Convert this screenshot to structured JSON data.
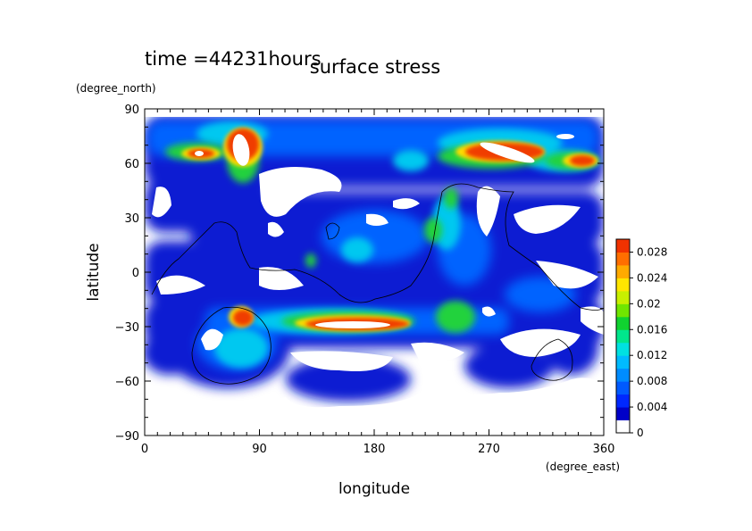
{
  "chart_data": {
    "type": "heatmap",
    "time_label": "time =44231hours",
    "title": "surface stress",
    "xlabel": "longitude",
    "ylabel": "latitude",
    "x_units": "(degree_east)",
    "y_units": "(degree_north)",
    "xlim": [
      0,
      360
    ],
    "ylim": [
      -90,
      90
    ],
    "x_ticks": [
      "0",
      "90",
      "180",
      "270",
      "360"
    ],
    "x_tick_values": [
      0,
      90,
      180,
      270,
      360
    ],
    "y_ticks": [
      "90",
      "60",
      "30",
      "0",
      "−30",
      "−60",
      "−90"
    ],
    "y_tick_values": [
      90,
      60,
      30,
      0,
      -30,
      -60,
      -90
    ],
    "colorbar": {
      "min": 0,
      "max": 0.03,
      "tick_labels": [
        "0.028",
        "0.024",
        "0.02",
        "0.016",
        "0.012",
        "0.008",
        "0.004",
        "0"
      ],
      "tick_values": [
        0.028,
        0.024,
        0.02,
        0.016,
        0.012,
        0.008,
        0.004,
        0
      ],
      "colors": [
        "#ffffff",
        "#0000c8",
        "#0028ff",
        "#005aff",
        "#008cff",
        "#00bbff",
        "#00e1e1",
        "#00e68c",
        "#10d230",
        "#70e600",
        "#c8f000",
        "#ffe600",
        "#ffaa00",
        "#ff6e00",
        "#f03200"
      ]
    },
    "hotspots": [
      {
        "lon": 35,
        "lat": 66,
        "peak": 0.028
      },
      {
        "lon": 75,
        "lat": 67,
        "peak": 0.03
      },
      {
        "lon": 275,
        "lat": 68,
        "peak": 0.03
      },
      {
        "lon": 340,
        "lat": 62,
        "peak": 0.024
      },
      {
        "lon": 195,
        "lat": -28,
        "peak": 0.03
      },
      {
        "lon": 75,
        "lat": -27,
        "peak": 0.028
      },
      {
        "lon": 245,
        "lat": -20,
        "peak": 0.02
      },
      {
        "lon": 230,
        "lat": 24,
        "peak": 0.018
      },
      {
        "lon": 245,
        "lat": 40,
        "peak": 0.018
      },
      {
        "lon": 150,
        "lat": 70,
        "peak": 0.014
      }
    ]
  }
}
